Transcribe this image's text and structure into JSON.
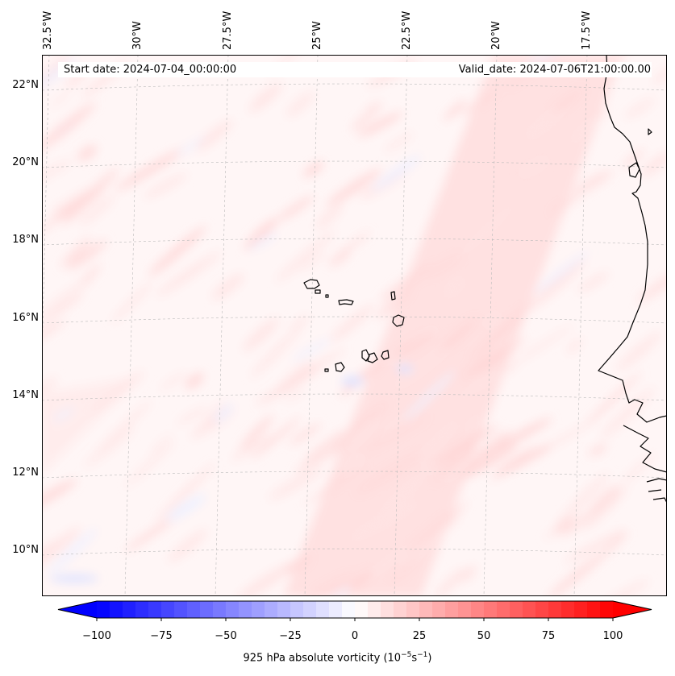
{
  "map": {
    "start_date": "Start date: 2024-07-04_00:00:00",
    "valid_date": "Valid_date: 2024-07-06T21:00:00.00",
    "longitude_labels": [
      "32.5°W",
      "30°W",
      "27.5°W",
      "25°W",
      "22.5°W",
      "20°W",
      "17.5°W"
    ],
    "latitude_labels": [
      "22°N",
      "20°N",
      "18°N",
      "16°N",
      "14°N",
      "12°N",
      "10°N"
    ],
    "extent": {
      "lon_min": -33.0,
      "lon_max": -16.2,
      "lat_min": 8.8,
      "lat_max": 22.8
    },
    "gridlines": true,
    "colors": {
      "negative": "#0000ff",
      "zero": "#ffffff",
      "positive": "#ff0000",
      "coastline": "#000000"
    }
  },
  "colorbar": {
    "label_prefix": "925 hPa absolute vorticity (10",
    "label_exp1": "−5",
    "label_mid": "s",
    "label_exp2": "−1",
    "label_suffix": ")",
    "ticks": [
      "−100",
      "−75",
      "−50",
      "−25",
      "0",
      "25",
      "50",
      "75",
      "100"
    ],
    "range": [
      -100,
      100
    ],
    "levels": 41,
    "extend": "both"
  }
}
